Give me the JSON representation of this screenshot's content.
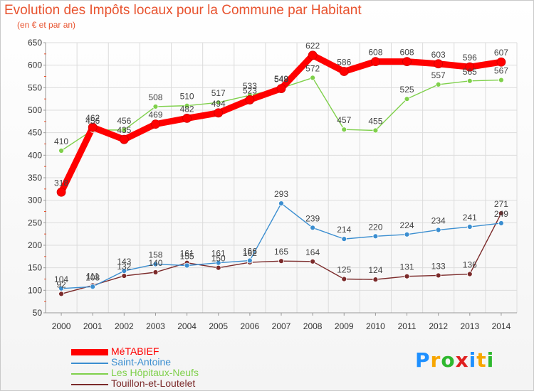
{
  "header": {
    "title": "Evolution des Impôts locaux pour la Commune par Habitant",
    "subtitle": "(en € et par an)"
  },
  "brand": {
    "letters": [
      "P",
      "r",
      "o",
      "x",
      "i",
      "t",
      "i"
    ],
    "colors": [
      "#1e90ff",
      "#f7a600",
      "#2eb82e",
      "#e02020",
      "#1e90ff",
      "#f7a600",
      "#2eb82e"
    ]
  },
  "chart_data": {
    "type": "line",
    "title": "Evolution des Impôts locaux pour la Commune par Habitant",
    "subtitle": "(en € et par an)",
    "x": [
      "2000",
      "2001",
      "2002",
      "2003",
      "2004",
      "2005",
      "2006",
      "2007",
      "2008",
      "2009",
      "2010",
      "2011",
      "2012",
      "2013",
      "2014"
    ],
    "ylim": [
      50,
      650
    ],
    "yticks": [
      50,
      100,
      150,
      200,
      250,
      300,
      350,
      400,
      450,
      500,
      550,
      600,
      650
    ],
    "grid": true,
    "legend_position": "bottom-left",
    "series": [
      {
        "name": "MéTABIEF",
        "color": "#ff0000",
        "values": [
          318,
          462,
          435,
          469,
          482,
          494,
          523,
          548,
          622,
          586,
          608,
          608,
          603,
          596,
          607
        ],
        "labels": [
          "318",
          "462",
          "435",
          "469",
          "482",
          "494",
          "523",
          "548",
          "622",
          "586",
          "608",
          "608",
          "603",
          "596",
          "607"
        ]
      },
      {
        "name": "Saint-Antoine",
        "color": "#3b8ed0",
        "values": [
          104,
          108,
          143,
          158,
          155,
          161,
          166,
          293,
          239,
          214,
          220,
          224,
          234,
          241,
          249
        ],
        "labels": [
          "104",
          "108",
          "143",
          "158",
          "155",
          "161",
          "166",
          "293",
          "239",
          "214",
          "220",
          "224",
          "234",
          "241",
          "249"
        ]
      },
      {
        "name": "Les Hôpitaux-Neufs",
        "color": "#7fd04b",
        "values": [
          410,
          456,
          456,
          508,
          510,
          517,
          533,
          549,
          572,
          457,
          455,
          525,
          557,
          565,
          567
        ],
        "labels": [
          "410",
          "456",
          "456",
          "508",
          "510",
          "517",
          "533",
          "549",
          "572",
          "457",
          "455",
          "525",
          "557",
          "565",
          "567"
        ]
      },
      {
        "name": "Touillon-et-Loutelet",
        "color": "#7b2a2a",
        "values": [
          92,
          111,
          132,
          140,
          161,
          150,
          162,
          165,
          164,
          125,
          124,
          131,
          133,
          136,
          271
        ],
        "labels": [
          "92",
          "111",
          "132",
          "140",
          "161",
          "150",
          "162",
          "165",
          "164",
          "125",
          "124",
          "131",
          "133",
          "136",
          "271"
        ]
      }
    ]
  }
}
